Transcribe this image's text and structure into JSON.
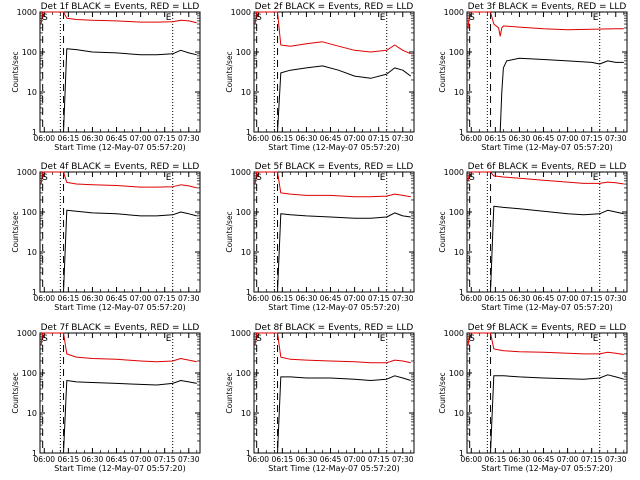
{
  "page": {
    "figure": "detector-count-rates-grid"
  },
  "colors": {
    "events": "#000000",
    "lld": "#e00000",
    "axes": "#000000",
    "background": "#ffffff"
  },
  "common": {
    "xlabel": "Start Time (12-May-07 05:57:20)",
    "ylabel": "Counts/sec",
    "x_tick_labels": [
      "06:00",
      "06:15",
      "06:30",
      "06:45",
      "07:00",
      "07:15",
      "07:30"
    ],
    "y_tick_labels": [
      "1",
      "10",
      "100",
      "1000"
    ],
    "marker_S": "S",
    "marker_E": "E"
  },
  "chart_data": [
    {
      "type": "line",
      "title": "Det 1f BLACK = Events, RED = LLD",
      "xlabel": "Start Time (12-May-07 05:57:20)",
      "ylabel": "Counts/sec",
      "yscale": "log",
      "ylim": [
        1,
        1000
      ],
      "xlim": [
        "05:57:20",
        "07:37:00"
      ],
      "x_ticks": [
        "06:00",
        "06:15",
        "06:30",
        "06:45",
        "07:00",
        "07:15",
        "07:30"
      ],
      "vlines_dashed": [
        "05:59",
        "06:12"
      ],
      "vlines_dotted": [
        "06:10",
        "07:20"
      ],
      "S_at": "05:58",
      "E_at": "07:20",
      "series": [
        {
          "name": "Events",
          "color": "#000000",
          "x": [
            "06:12",
            "06:14",
            "06:20",
            "06:30",
            "06:45",
            "07:00",
            "07:10",
            "07:20",
            "07:25",
            "07:30",
            "07:35"
          ],
          "y": [
            0,
            120,
            115,
            100,
            95,
            85,
            85,
            90,
            110,
            95,
            85
          ]
        },
        {
          "name": "LLD",
          "color": "#e00000",
          "x": [
            "05:58",
            "05:59",
            "06:12",
            "06:14",
            "06:20",
            "06:30",
            "06:45",
            "07:00",
            "07:10",
            "07:20",
            "07:25",
            "07:30",
            "07:35"
          ],
          "y": [
            500,
            1000,
            1000,
            700,
            650,
            620,
            600,
            560,
            560,
            570,
            620,
            600,
            540
          ]
        }
      ]
    },
    {
      "type": "line",
      "title": "Det 2f BLACK = Events, RED = LLD",
      "xlabel": "Start Time (12-May-07 05:57:20)",
      "ylabel": "Counts/sec",
      "yscale": "log",
      "ylim": [
        1,
        1000
      ],
      "xlim": [
        "05:57:20",
        "07:37:00"
      ],
      "x_ticks": [
        "06:00",
        "06:15",
        "06:30",
        "06:45",
        "07:00",
        "07:15",
        "07:30"
      ],
      "vlines_dashed": [
        "05:59",
        "06:12"
      ],
      "vlines_dotted": [
        "06:10",
        "07:20"
      ],
      "S_at": "05:58",
      "E_at": "07:20",
      "series": [
        {
          "name": "Events",
          "color": "#000000",
          "x": [
            "06:12",
            "06:14",
            "06:20",
            "06:30",
            "06:40",
            "06:50",
            "07:00",
            "07:10",
            "07:20",
            "07:25",
            "07:30",
            "07:35"
          ],
          "y": [
            0,
            30,
            35,
            40,
            45,
            35,
            25,
            22,
            28,
            40,
            35,
            25
          ]
        },
        {
          "name": "LLD",
          "color": "#e00000",
          "x": [
            "05:58",
            "05:59",
            "06:12",
            "06:14",
            "06:20",
            "06:30",
            "06:40",
            "06:50",
            "07:00",
            "07:10",
            "07:20",
            "07:25",
            "07:30",
            "07:35"
          ],
          "y": [
            500,
            1000,
            1000,
            150,
            140,
            160,
            180,
            140,
            110,
            100,
            110,
            150,
            110,
            90
          ]
        }
      ]
    },
    {
      "type": "line",
      "title": "Det 3f BLACK = Events, RED = LLD",
      "xlabel": "Start Time (12-May-07 05:57:20)",
      "ylabel": "Counts/sec",
      "yscale": "log",
      "ylim": [
        1,
        1000
      ],
      "xlim": [
        "05:57:20",
        "07:37:00"
      ],
      "x_ticks": [
        "06:00",
        "06:15",
        "06:30",
        "06:45",
        "07:00",
        "07:15",
        "07:30"
      ],
      "vlines_dashed": [
        "05:59",
        "06:12"
      ],
      "vlines_dotted": [
        "06:10",
        "07:20"
      ],
      "S_at": "05:58",
      "E_at": "07:20",
      "series": [
        {
          "name": "Events",
          "color": "#000000",
          "x": [
            "06:12",
            "06:14",
            "06:17",
            "06:18",
            "06:19",
            "06:20",
            "06:22",
            "06:30",
            "06:45",
            "07:00",
            "07:15",
            "07:20",
            "07:25",
            "07:30",
            "07:35"
          ],
          "y": [
            0,
            0,
            0,
            1,
            10,
            40,
            60,
            70,
            65,
            60,
            55,
            50,
            60,
            55,
            55
          ]
        },
        {
          "name": "LLD",
          "color": "#e00000",
          "x": [
            "05:58",
            "05:59",
            "06:12",
            "06:14",
            "06:17",
            "06:18",
            "06:19",
            "06:20",
            "06:30",
            "06:45",
            "07:00",
            "07:15",
            "07:30",
            "07:35"
          ],
          "y": [
            400,
            1000,
            1000,
            500,
            400,
            250,
            400,
            450,
            420,
            380,
            360,
            370,
            380,
            380
          ]
        }
      ]
    },
    {
      "type": "line",
      "title": "Det 4f BLACK = Events, RED = LLD",
      "xlabel": "Start Time (12-May-07 05:57:20)",
      "ylabel": "Counts/sec",
      "yscale": "log",
      "ylim": [
        1,
        1000
      ],
      "xlim": [
        "05:57:20",
        "07:37:00"
      ],
      "x_ticks": [
        "06:00",
        "06:15",
        "06:30",
        "06:45",
        "07:00",
        "07:15",
        "07:30"
      ],
      "vlines_dashed": [
        "05:59",
        "06:12"
      ],
      "vlines_dotted": [
        "06:10",
        "07:20"
      ],
      "S_at": "05:58",
      "E_at": "07:20",
      "series": [
        {
          "name": "Events",
          "color": "#000000",
          "x": [
            "06:12",
            "06:14",
            "06:20",
            "06:30",
            "06:45",
            "07:00",
            "07:10",
            "07:20",
            "07:25",
            "07:30",
            "07:35"
          ],
          "y": [
            0,
            110,
            105,
            95,
            90,
            80,
            80,
            85,
            100,
            90,
            80
          ]
        },
        {
          "name": "LLD",
          "color": "#e00000",
          "x": [
            "05:58",
            "05:59",
            "06:12",
            "06:14",
            "06:20",
            "06:30",
            "06:45",
            "07:00",
            "07:10",
            "07:20",
            "07:25",
            "07:30",
            "07:35"
          ],
          "y": [
            500,
            1000,
            1000,
            550,
            500,
            480,
            460,
            420,
            420,
            430,
            480,
            450,
            400
          ]
        }
      ]
    },
    {
      "type": "line",
      "title": "Det 5f BLACK = Events, RED = LLD",
      "xlabel": "Start Time (12-May-07 05:57:20)",
      "ylabel": "Counts/sec",
      "yscale": "log",
      "ylim": [
        1,
        1000
      ],
      "xlim": [
        "05:57:20",
        "07:37:00"
      ],
      "x_ticks": [
        "06:00",
        "06:15",
        "06:30",
        "06:45",
        "07:00",
        "07:15",
        "07:30"
      ],
      "vlines_dashed": [
        "05:59",
        "06:12"
      ],
      "vlines_dotted": [
        "06:10",
        "07:20"
      ],
      "S_at": "05:58",
      "E_at": "07:20",
      "series": [
        {
          "name": "Events",
          "color": "#000000",
          "x": [
            "06:12",
            "06:14",
            "06:20",
            "06:30",
            "06:45",
            "07:00",
            "07:10",
            "07:20",
            "07:25",
            "07:30",
            "07:35"
          ],
          "y": [
            0,
            90,
            85,
            80,
            75,
            70,
            70,
            75,
            95,
            80,
            75
          ]
        },
        {
          "name": "LLD",
          "color": "#e00000",
          "x": [
            "05:58",
            "05:59",
            "06:12",
            "06:14",
            "06:20",
            "06:30",
            "06:45",
            "07:00",
            "07:10",
            "07:20",
            "07:25",
            "07:30",
            "07:35"
          ],
          "y": [
            500,
            1000,
            1000,
            300,
            280,
            260,
            260,
            240,
            240,
            250,
            280,
            260,
            240
          ]
        }
      ]
    },
    {
      "type": "line",
      "title": "Det 6f BLACK = Events, RED = LLD",
      "xlabel": "Start Time (12-May-07 05:57:20)",
      "ylabel": "Counts/sec",
      "yscale": "log",
      "ylim": [
        1,
        1000
      ],
      "xlim": [
        "05:57:20",
        "07:37:00"
      ],
      "x_ticks": [
        "06:00",
        "06:15",
        "06:30",
        "06:45",
        "07:00",
        "07:15",
        "07:30"
      ],
      "vlines_dashed": [
        "05:59",
        "06:12"
      ],
      "vlines_dotted": [
        "06:10",
        "07:20"
      ],
      "S_at": "05:58",
      "E_at": "07:20",
      "series": [
        {
          "name": "Events",
          "color": "#000000",
          "x": [
            "06:12",
            "06:14",
            "06:20",
            "06:30",
            "06:45",
            "07:00",
            "07:10",
            "07:20",
            "07:25",
            "07:30",
            "07:35"
          ],
          "y": [
            0,
            140,
            130,
            120,
            105,
            90,
            85,
            90,
            110,
            100,
            90
          ]
        },
        {
          "name": "LLD",
          "color": "#e00000",
          "x": [
            "05:58",
            "05:59",
            "06:12",
            "06:14",
            "06:20",
            "06:30",
            "06:45",
            "07:00",
            "07:10",
            "07:20",
            "07:25",
            "07:30",
            "07:35"
          ],
          "y": [
            600,
            1000,
            1000,
            800,
            750,
            700,
            620,
            560,
            520,
            520,
            560,
            540,
            500
          ]
        }
      ]
    },
    {
      "type": "line",
      "title": "Det 7f BLACK = Events, RED = LLD",
      "xlabel": "Start Time (12-May-07 05:57:20)",
      "ylabel": "Counts/sec",
      "yscale": "log",
      "ylim": [
        1,
        1000
      ],
      "xlim": [
        "05:57:20",
        "07:37:00"
      ],
      "x_ticks": [
        "06:00",
        "06:15",
        "06:30",
        "06:45",
        "07:00",
        "07:15",
        "07:30"
      ],
      "vlines_dashed": [
        "05:59",
        "06:12"
      ],
      "vlines_dotted": [
        "06:10",
        "07:20"
      ],
      "S_at": "05:58",
      "E_at": "07:20",
      "series": [
        {
          "name": "Events",
          "color": "#000000",
          "x": [
            "06:12",
            "06:14",
            "06:20",
            "06:30",
            "06:45",
            "07:00",
            "07:10",
            "07:20",
            "07:25",
            "07:30",
            "07:35"
          ],
          "y": [
            0,
            65,
            60,
            58,
            55,
            52,
            50,
            55,
            65,
            60,
            55
          ]
        },
        {
          "name": "LLD",
          "color": "#e00000",
          "x": [
            "05:58",
            "05:59",
            "06:12",
            "06:14",
            "06:20",
            "06:30",
            "06:45",
            "07:00",
            "07:10",
            "07:20",
            "07:25",
            "07:30",
            "07:35"
          ],
          "y": [
            500,
            1000,
            1000,
            300,
            250,
            230,
            220,
            200,
            190,
            200,
            230,
            210,
            190
          ]
        }
      ]
    },
    {
      "type": "line",
      "title": "Det 8f BLACK = Events, RED = LLD",
      "xlabel": "Start Time (12-May-07 05:57:20)",
      "ylabel": "Counts/sec",
      "yscale": "log",
      "ylim": [
        1,
        1000
      ],
      "xlim": [
        "05:57:20",
        "07:37:00"
      ],
      "x_ticks": [
        "06:00",
        "06:15",
        "06:30",
        "06:45",
        "07:00",
        "07:15",
        "07:30"
      ],
      "vlines_dashed": [
        "05:59",
        "06:12"
      ],
      "vlines_dotted": [
        "06:10",
        "07:20"
      ],
      "S_at": "05:58",
      "E_at": "07:20",
      "series": [
        {
          "name": "Events",
          "color": "#000000",
          "x": [
            "06:12",
            "06:14",
            "06:20",
            "06:30",
            "06:45",
            "07:00",
            "07:10",
            "07:20",
            "07:25",
            "07:30",
            "07:35"
          ],
          "y": [
            0,
            80,
            80,
            75,
            75,
            70,
            65,
            70,
            85,
            75,
            65
          ]
        },
        {
          "name": "LLD",
          "color": "#e00000",
          "x": [
            "05:58",
            "05:59",
            "06:12",
            "06:14",
            "06:20",
            "06:30",
            "06:45",
            "07:00",
            "07:10",
            "07:20",
            "07:25",
            "07:30",
            "07:35"
          ],
          "y": [
            500,
            1000,
            1000,
            250,
            220,
            210,
            200,
            190,
            180,
            180,
            210,
            200,
            180
          ]
        }
      ]
    },
    {
      "type": "line",
      "title": "Det 9f BLACK = Events, RED = LLD",
      "xlabel": "Start Time (12-May-07 05:57:20)",
      "ylabel": "Counts/sec",
      "yscale": "log",
      "ylim": [
        1,
        1000
      ],
      "xlim": [
        "05:57:20",
        "07:37:00"
      ],
      "x_ticks": [
        "06:00",
        "06:15",
        "06:30",
        "06:45",
        "07:00",
        "07:15",
        "07:30"
      ],
      "vlines_dashed": [
        "05:59",
        "06:12"
      ],
      "vlines_dotted": [
        "06:10",
        "07:20"
      ],
      "S_at": "05:58",
      "E_at": "07:20",
      "series": [
        {
          "name": "Events",
          "color": "#000000",
          "x": [
            "06:12",
            "06:14",
            "06:20",
            "06:30",
            "06:45",
            "07:00",
            "07:10",
            "07:20",
            "07:25",
            "07:30",
            "07:35"
          ],
          "y": [
            0,
            85,
            85,
            80,
            75,
            72,
            70,
            75,
            90,
            80,
            70
          ]
        },
        {
          "name": "LLD",
          "color": "#e00000",
          "x": [
            "05:58",
            "05:59",
            "06:12",
            "06:14",
            "06:20",
            "06:30",
            "06:45",
            "07:00",
            "07:10",
            "07:20",
            "07:25",
            "07:30",
            "07:35"
          ],
          "y": [
            500,
            1000,
            1000,
            400,
            360,
            340,
            330,
            310,
            300,
            300,
            330,
            310,
            290
          ]
        }
      ]
    }
  ]
}
